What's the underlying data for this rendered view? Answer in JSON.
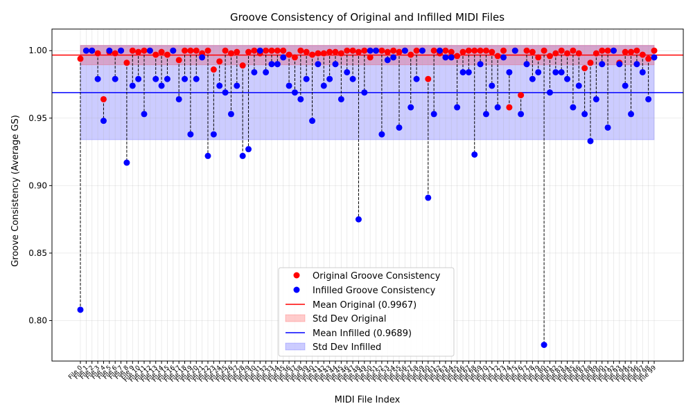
{
  "chart_data": {
    "type": "scatter",
    "title": "Groove Consistency of Original and Infilled MIDI Files",
    "xlabel": "MIDI File Index",
    "ylabel": "Groove Consistency (Average GS)",
    "ylim": [
      0.77,
      1.016
    ],
    "yticks": [
      "0.80",
      "0.85",
      "0.90",
      "0.95",
      "1.00"
    ],
    "grid": true,
    "legend_position": "lower center",
    "x_labels": [
      "File 0",
      "File 1",
      "File 2",
      "File 3",
      "File 4",
      "File 5",
      "File 6",
      "File 7",
      "File 8",
      "File 9",
      "File 10",
      "File 11",
      "File 12",
      "File 13",
      "File 14",
      "File 15",
      "File 16",
      "File 17",
      "File 18",
      "File 19",
      "File 20",
      "File 21",
      "File 22",
      "File 23",
      "File 24",
      "File 25",
      "File 26",
      "File 27",
      "File 28",
      "File 29",
      "File 30",
      "File 31",
      "File 32",
      "File 33",
      "File 34",
      "File 35",
      "File 36",
      "File 37",
      "File 38",
      "File 39",
      "File 40",
      "File 41",
      "File 42",
      "File 43",
      "File 44",
      "File 45",
      "File 46",
      "File 47",
      "File 48",
      "File 49",
      "File 50",
      "File 51",
      "File 52",
      "File 53",
      "File 54",
      "File 55",
      "File 56",
      "File 57",
      "File 58",
      "File 59",
      "File 60",
      "File 61",
      "File 62",
      "File 63",
      "File 64",
      "File 65",
      "File 66",
      "File 67",
      "File 68",
      "File 69",
      "File 70",
      "File 71",
      "File 72",
      "File 73",
      "File 74",
      "File 75",
      "File 76",
      "File 77",
      "File 78",
      "File 79",
      "File 80",
      "File 81",
      "File 82",
      "File 83",
      "File 84",
      "File 85",
      "File 86",
      "File 87",
      "File 88",
      "File 89",
      "File 90",
      "File 91",
      "File 92",
      "File 93",
      "File 94",
      "File 95",
      "File 96",
      "File 97",
      "File 98",
      "File 99"
    ],
    "series": [
      {
        "name": "Original Groove Consistency",
        "color": "#ff0000",
        "values": [
          0.994,
          1.0,
          1.0,
          0.998,
          0.964,
          0.999,
          0.998,
          1.0,
          0.991,
          1.0,
          0.999,
          1.0,
          1.0,
          0.997,
          0.999,
          0.997,
          1.0,
          0.993,
          1.0,
          1.0,
          1.0,
          0.998,
          1.0,
          0.986,
          0.992,
          1.0,
          0.998,
          0.999,
          0.989,
          0.999,
          1.0,
          0.998,
          1.0,
          1.0,
          1.0,
          1.0,
          0.997,
          0.995,
          1.0,
          0.999,
          0.997,
          0.998,
          0.998,
          0.999,
          0.999,
          0.998,
          1.0,
          1.0,
          0.999,
          1.0,
          0.995,
          1.0,
          1.0,
          0.999,
          1.0,
          0.999,
          1.0,
          0.997,
          1.0,
          1.0,
          0.979,
          1.0,
          0.998,
          1.0,
          0.999,
          0.996,
          0.999,
          1.0,
          1.0,
          1.0,
          1.0,
          0.999,
          0.996,
          1.0,
          0.958,
          1.0,
          0.967,
          1.0,
          0.999,
          0.995,
          1.0,
          0.996,
          0.998,
          1.0,
          0.998,
          1.0,
          0.998,
          0.987,
          0.991,
          0.998,
          1.0,
          1.0,
          1.0,
          0.991,
          0.999,
          0.999,
          1.0,
          0.997,
          0.994,
          1.0
        ]
      },
      {
        "name": "Infilled Groove Consistency",
        "color": "#0000ff",
        "values": [
          0.808,
          1.0,
          1.0,
          0.979,
          0.948,
          1.0,
          0.979,
          1.0,
          0.917,
          0.974,
          0.979,
          0.953,
          1.0,
          0.979,
          0.974,
          0.979,
          1.0,
          0.964,
          0.979,
          0.938,
          0.979,
          0.995,
          0.922,
          0.938,
          0.974,
          0.969,
          0.953,
          0.974,
          0.922,
          0.927,
          0.984,
          1.0,
          0.984,
          0.99,
          0.99,
          0.995,
          0.974,
          0.969,
          0.964,
          0.979,
          0.948,
          0.99,
          0.974,
          0.979,
          0.99,
          0.964,
          0.984,
          0.979,
          0.875,
          0.969,
          1.0,
          1.0,
          0.938,
          0.993,
          0.995,
          0.943,
          1.0,
          0.958,
          0.979,
          1.0,
          0.891,
          0.953,
          1.0,
          0.995,
          0.995,
          0.958,
          0.984,
          0.984,
          0.923,
          0.99,
          0.953,
          0.974,
          0.958,
          0.995,
          0.984,
          1.0,
          0.953,
          0.99,
          0.979,
          0.984,
          0.782,
          0.969,
          0.984,
          0.984,
          0.979,
          0.958,
          0.974,
          0.953,
          0.933,
          0.964,
          0.99,
          0.943,
          1.0,
          0.99,
          0.974,
          0.953,
          0.99,
          0.984,
          0.964,
          0.995
        ]
      }
    ],
    "mean_original": {
      "label": "Mean Original (0.9967)",
      "value": 0.9967,
      "std": 0.0072,
      "color": "#ff0000"
    },
    "mean_infilled": {
      "label": "Mean Infilled (0.9689)",
      "value": 0.9689,
      "std": 0.0349,
      "color": "#0000ff"
    },
    "std_original_label": "Std Dev Original",
    "std_infilled_label": "Std Dev Infilled"
  }
}
